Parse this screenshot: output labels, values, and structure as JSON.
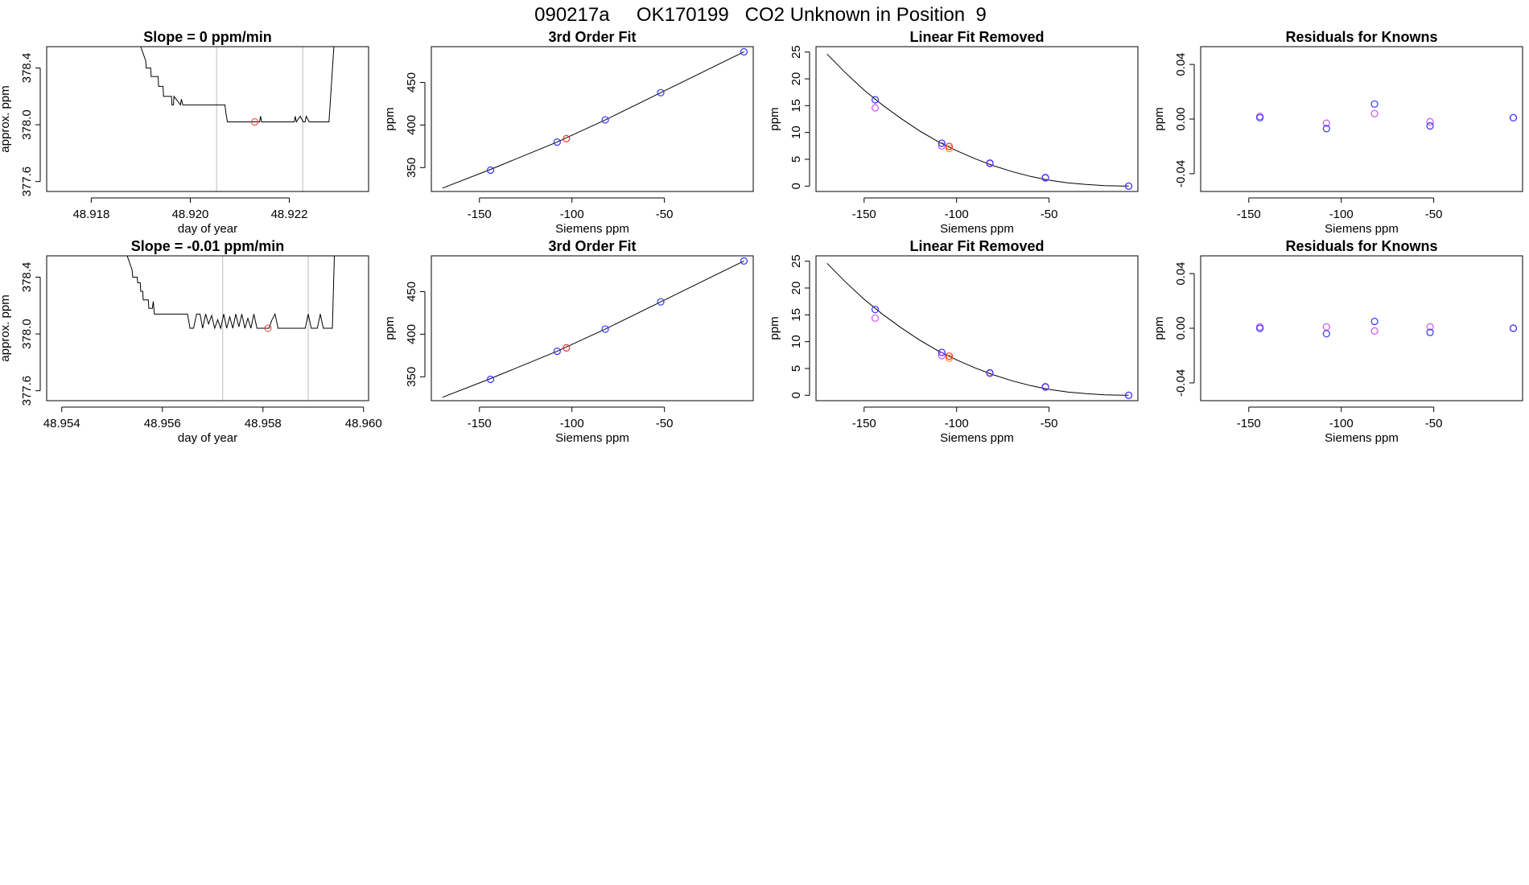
{
  "header": {
    "title": "090217a     OK170199   CO2 Unknown in Position  9"
  },
  "colors": {
    "trace": "#000000",
    "known": "#3333ff",
    "prev": "#cc55ee",
    "unknown": "#ee3333",
    "unknown_alt": "#ff9900",
    "window_line": "#bbbbbb"
  },
  "chart_data": [
    {
      "type": "line",
      "title": "Slope =  0  ppm/min",
      "xlabel": "day of year",
      "ylabel": "approx. ppm",
      "xlim": [
        48.9171,
        48.9236
      ],
      "ylim": [
        377.53,
        378.55
      ],
      "xticks": [
        48.918,
        48.92,
        48.922
      ],
      "xtick_labels": [
        "48.918",
        "48.920",
        "48.922"
      ],
      "yticks": [
        377.6,
        378.0,
        378.4
      ],
      "ytick_labels": [
        "377.6",
        "378.0",
        "378.4"
      ],
      "vlines": [
        48.92053,
        48.92227
      ],
      "x": [
        48.919,
        48.9191,
        48.91911,
        48.9192,
        48.91921,
        48.91935,
        48.91936,
        48.91945,
        48.91946,
        48.91962,
        48.91963,
        48.91966,
        48.91967,
        48.9198,
        48.91982,
        48.91985,
        48.91987,
        48.92,
        48.92002,
        48.9207,
        48.92072,
        48.92075,
        48.9208,
        48.9214,
        48.92142,
        48.92144,
        48.9215,
        48.9221,
        48.92212,
        48.92214,
        48.92222,
        48.92228,
        48.92232,
        48.92234,
        48.9224,
        48.9228,
        48.9229
      ],
      "y": [
        378.55,
        378.45,
        378.4,
        378.4,
        378.34,
        378.34,
        378.27,
        378.27,
        378.2,
        378.2,
        378.14,
        378.14,
        378.2,
        378.14,
        378.18,
        378.14,
        378.14,
        378.14,
        378.14,
        378.14,
        378.08,
        378.02,
        378.02,
        378.02,
        378.06,
        378.02,
        378.02,
        378.02,
        378.06,
        378.02,
        378.06,
        378.02,
        378.02,
        378.06,
        378.02,
        378.02,
        378.55
      ],
      "marker": {
        "x": 48.9213,
        "y": 378.02
      }
    },
    {
      "type": "scatter",
      "title": "3rd Order Fit",
      "xlabel": "Siemens ppm",
      "ylabel": "ppm",
      "xlim": [
        -176,
        -2
      ],
      "ylim": [
        322,
        492
      ],
      "xticks": [
        -150,
        -100,
        -50
      ],
      "xtick_labels": [
        "-150",
        "-100",
        "-50"
      ],
      "yticks": [
        350,
        400,
        450
      ],
      "ytick_labels": [
        "350",
        "400",
        "450"
      ],
      "curve": {
        "x": [
          -170,
          -145,
          -108,
          -82,
          -52,
          -7
        ],
        "y": [
          326,
          347,
          380,
          406,
          438,
          486
        ]
      },
      "known": {
        "x": [
          -144,
          -108,
          -82,
          -52,
          -7
        ],
        "y": [
          347,
          380,
          406,
          438,
          486
        ]
      },
      "unknown": {
        "x": [
          -103
        ],
        "y": [
          384
        ]
      }
    },
    {
      "type": "scatter",
      "title": "Linear Fit Removed",
      "xlabel": "Siemens ppm",
      "ylabel": "ppm",
      "xlim": [
        -176,
        -2
      ],
      "ylim": [
        -1,
        26
      ],
      "xticks": [
        -150,
        -100,
        -50
      ],
      "xtick_labels": [
        "-150",
        "-100",
        "-50"
      ],
      "yticks": [
        0,
        5,
        10,
        15,
        20,
        25
      ],
      "ytick_labels": [
        "0",
        "5",
        "10",
        "15",
        "20",
        "25"
      ],
      "curve": {
        "x": [
          -170,
          -160,
          -150,
          -140,
          -130,
          -120,
          -110,
          -100,
          -90,
          -80,
          -70,
          -60,
          -50,
          -40,
          -30,
          -20,
          -10,
          -7
        ],
        "y": [
          24.6,
          21.1,
          17.9,
          15.1,
          12.6,
          10.3,
          8.3,
          6.6,
          5.1,
          3.8,
          2.7,
          1.8,
          1.1,
          0.6,
          0.3,
          0.1,
          0.0,
          0.0
        ]
      },
      "known": {
        "x": [
          -144,
          -108,
          -82,
          -52,
          -7
        ],
        "y": [
          16.1,
          8.0,
          4.3,
          1.6,
          0.0
        ]
      },
      "prev": {
        "x": [
          -144,
          -108,
          -82,
          -52,
          -7
        ],
        "y": [
          14.6,
          7.5,
          4.2,
          1.5,
          0.0
        ]
      },
      "unknown": {
        "x": [
          -104
        ],
        "y": [
          7.4
        ]
      },
      "unknown_alt": {
        "x": [
          -104
        ],
        "y": [
          7.0
        ]
      }
    },
    {
      "type": "scatter",
      "title": "Residuals for Knowns",
      "xlabel": "Siemens ppm",
      "ylabel": "ppm",
      "xlim": [
        -176,
        -2
      ],
      "ylim": [
        -0.053,
        0.053
      ],
      "xticks": [
        -150,
        -100,
        -50
      ],
      "xtick_labels": [
        "-150",
        "-100",
        "-50"
      ],
      "yticks": [
        -0.04,
        0.0,
        0.04
      ],
      "ytick_labels": [
        "-0.04",
        "0.00",
        "0.04"
      ],
      "known": {
        "x": [
          -144,
          -108,
          -82,
          -52,
          -7
        ],
        "y": [
          0.001,
          -0.007,
          0.011,
          -0.005,
          0.001
        ]
      },
      "prev": {
        "x": [
          -144,
          -108,
          -82,
          -52,
          -7
        ],
        "y": [
          0.002,
          -0.003,
          0.004,
          -0.002,
          0.001
        ]
      }
    },
    {
      "type": "line",
      "title": "Slope =  -0.01  ppm/min",
      "xlabel": "day of year",
      "ylabel": "approx. ppm",
      "xlim": [
        48.9537,
        48.9601
      ],
      "ylim": [
        377.53,
        378.55
      ],
      "xticks": [
        48.954,
        48.956,
        48.958,
        48.96
      ],
      "xtick_labels": [
        "48.954",
        "48.956",
        "48.958",
        "48.960"
      ],
      "yticks": [
        377.6,
        378.0,
        378.4
      ],
      "ytick_labels": [
        "377.6",
        "378.0",
        "378.4"
      ],
      "vlines": [
        48.9572,
        48.9589
      ],
      "x": [
        48.9553,
        48.9554,
        48.95541,
        48.9555,
        48.95551,
        48.95556,
        48.95557,
        48.95561,
        48.95562,
        48.95572,
        48.95573,
        48.9558,
        48.95582,
        48.95584,
        48.9559,
        48.9565,
        48.95655,
        48.95662,
        48.95668,
        48.95675,
        48.9568,
        48.95686,
        48.95692,
        48.95698,
        48.95704,
        48.9571,
        48.95716,
        48.95722,
        48.95728,
        48.95734,
        48.9574,
        48.95746,
        48.95752,
        48.95758,
        48.95764,
        48.9577,
        48.95776,
        48.95782,
        48.95788,
        48.95794,
        48.958,
        48.95806,
        48.95812,
        48.95818,
        48.95824,
        48.9583,
        48.95836,
        48.95842,
        48.95848,
        48.95854,
        48.9586,
        48.95866,
        48.95872,
        48.95878,
        48.95884,
        48.9589,
        48.95896,
        48.95902,
        48.95908,
        48.95914,
        48.9592,
        48.95926,
        48.95932,
        48.95938,
        48.95942
      ],
      "y": [
        378.55,
        378.45,
        378.4,
        378.4,
        378.36,
        378.36,
        378.3,
        378.3,
        378.24,
        378.24,
        378.18,
        378.18,
        378.23,
        378.14,
        378.14,
        378.14,
        378.04,
        378.04,
        378.14,
        378.14,
        378.04,
        378.14,
        378.07,
        378.13,
        378.04,
        378.1,
        378.04,
        378.14,
        378.04,
        378.12,
        378.04,
        378.14,
        378.05,
        378.14,
        378.04,
        378.11,
        378.04,
        378.14,
        378.04,
        378.04,
        378.04,
        378.04,
        378.04,
        378.1,
        378.14,
        378.04,
        378.04,
        378.04,
        378.04,
        378.04,
        378.04,
        378.04,
        378.04,
        378.04,
        378.04,
        378.14,
        378.04,
        378.04,
        378.04,
        378.14,
        378.04,
        378.04,
        378.04,
        378.04,
        378.55
      ],
      "marker": {
        "x": 48.9581,
        "y": 378.04
      }
    },
    {
      "type": "scatter",
      "title": "3rd Order Fit",
      "xlabel": "Siemens ppm",
      "ylabel": "ppm",
      "xlim": [
        -176,
        -2
      ],
      "ylim": [
        322,
        492
      ],
      "xticks": [
        -150,
        -100,
        -50
      ],
      "xtick_labels": [
        "-150",
        "-100",
        "-50"
      ],
      "yticks": [
        350,
        400,
        450
      ],
      "ytick_labels": [
        "350",
        "400",
        "450"
      ],
      "curve": {
        "x": [
          -170,
          -145,
          -108,
          -82,
          -52,
          -7
        ],
        "y": [
          326,
          347,
          380,
          406,
          438,
          486
        ]
      },
      "known": {
        "x": [
          -144,
          -108,
          -82,
          -52,
          -7
        ],
        "y": [
          347,
          380,
          406,
          438,
          486
        ]
      },
      "unknown": {
        "x": [
          -103
        ],
        "y": [
          384
        ]
      }
    },
    {
      "type": "scatter",
      "title": "Linear Fit Removed",
      "xlabel": "Siemens ppm",
      "ylabel": "ppm",
      "xlim": [
        -176,
        -2
      ],
      "ylim": [
        -1,
        26
      ],
      "xticks": [
        -150,
        -100,
        -50
      ],
      "xtick_labels": [
        "-150",
        "-100",
        "-50"
      ],
      "yticks": [
        0,
        5,
        10,
        15,
        20,
        25
      ],
      "ytick_labels": [
        "0",
        "5",
        "10",
        "15",
        "20",
        "25"
      ],
      "curve": {
        "x": [
          -170,
          -160,
          -150,
          -140,
          -130,
          -120,
          -110,
          -100,
          -90,
          -80,
          -70,
          -60,
          -50,
          -40,
          -30,
          -20,
          -10,
          -7
        ],
        "y": [
          24.6,
          21.1,
          17.9,
          15.1,
          12.6,
          10.3,
          8.3,
          6.6,
          5.1,
          3.8,
          2.7,
          1.8,
          1.1,
          0.6,
          0.3,
          0.1,
          0.0,
          0.0
        ]
      },
      "known": {
        "x": [
          -144,
          -108,
          -82,
          -52,
          -7
        ],
        "y": [
          16.0,
          8.0,
          4.2,
          1.6,
          0.0
        ]
      },
      "prev": {
        "x": [
          -144,
          -108,
          -82,
          -52,
          -7
        ],
        "y": [
          14.4,
          7.4,
          4.1,
          1.5,
          0.0
        ]
      },
      "unknown": {
        "x": [
          -104
        ],
        "y": [
          7.3
        ]
      },
      "unknown_alt": {
        "x": [
          -104
        ],
        "y": [
          6.9
        ]
      }
    },
    {
      "type": "scatter",
      "title": "Residuals for Knowns",
      "xlabel": "Siemens ppm",
      "ylabel": "ppm",
      "xlim": [
        -176,
        -2
      ],
      "ylim": [
        -0.053,
        0.053
      ],
      "xticks": [
        -150,
        -100,
        -50
      ],
      "xtick_labels": [
        "-150",
        "-100",
        "-50"
      ],
      "yticks": [
        -0.04,
        0.0,
        0.04
      ],
      "ytick_labels": [
        "-0.04",
        "0.00",
        "0.04"
      ],
      "known": {
        "x": [
          -144,
          -108,
          -82,
          -52,
          -7
        ],
        "y": [
          0.0,
          -0.004,
          0.005,
          -0.003,
          0.0
        ]
      },
      "prev": {
        "x": [
          -144,
          -108,
          -82,
          -52,
          -7
        ],
        "y": [
          0.001,
          0.001,
          -0.002,
          0.001,
          0.0
        ]
      }
    }
  ]
}
